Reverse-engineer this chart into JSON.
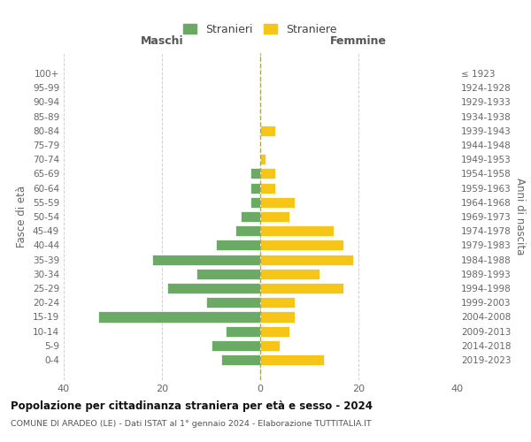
{
  "age_groups": [
    "0-4",
    "5-9",
    "10-14",
    "15-19",
    "20-24",
    "25-29",
    "30-34",
    "35-39",
    "40-44",
    "45-49",
    "50-54",
    "55-59",
    "60-64",
    "65-69",
    "70-74",
    "75-79",
    "80-84",
    "85-89",
    "90-94",
    "95-99",
    "100+"
  ],
  "birth_years": [
    "2019-2023",
    "2014-2018",
    "2009-2013",
    "2004-2008",
    "1999-2003",
    "1994-1998",
    "1989-1993",
    "1984-1988",
    "1979-1983",
    "1974-1978",
    "1969-1973",
    "1964-1968",
    "1959-1963",
    "1954-1958",
    "1949-1953",
    "1944-1948",
    "1939-1943",
    "1934-1938",
    "1929-1933",
    "1924-1928",
    "≤ 1923"
  ],
  "males": [
    8,
    10,
    7,
    33,
    11,
    19,
    13,
    22,
    9,
    5,
    4,
    2,
    2,
    2,
    0,
    0,
    0,
    0,
    0,
    0,
    0
  ],
  "females": [
    13,
    4,
    6,
    7,
    7,
    17,
    12,
    19,
    17,
    15,
    6,
    7,
    3,
    3,
    1,
    0,
    3,
    0,
    0,
    0,
    0
  ],
  "male_color": "#6aaa64",
  "female_color": "#f5c518",
  "bar_edge_color": "#ffffff",
  "bar_linewidth": 0.5,
  "title": "Popolazione per cittadinanza straniera per età e sesso - 2024",
  "subtitle": "COMUNE DI ARADEO (LE) - Dati ISTAT al 1° gennaio 2024 - Elaborazione TUTTITALIA.IT",
  "xlabel_left": "Maschi",
  "xlabel_right": "Femmine",
  "ylabel_left": "Fasce di età",
  "ylabel_right": "Anni di nascita",
  "legend_male": "Stranieri",
  "legend_female": "Straniere",
  "xlim": [
    -40,
    40
  ],
  "xticks": [
    -40,
    -20,
    0,
    20,
    40
  ],
  "xticklabels": [
    "40",
    "20",
    "0",
    "20",
    "40"
  ],
  "background_color": "#ffffff",
  "grid_color": "#d0d0d0",
  "center_line_color": "#aaaa55"
}
